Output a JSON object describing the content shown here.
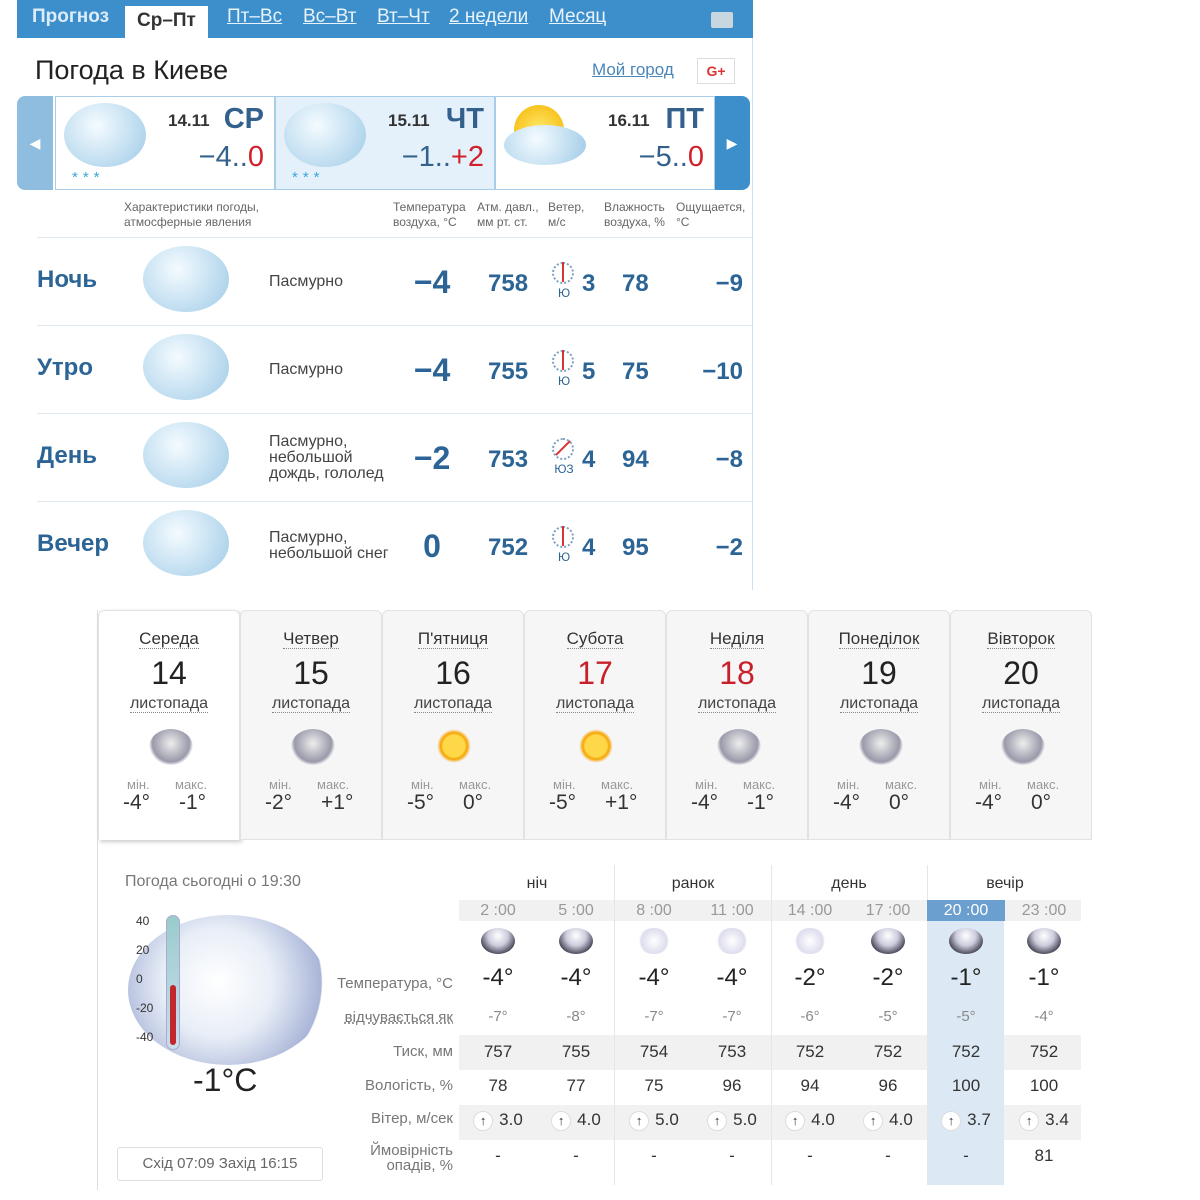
{
  "top": {
    "tabs": [
      "Прогноз",
      "Ср–Пт",
      "Пт–Вс",
      "Вс–Вт",
      "Вт–Чт",
      "2 недели",
      "Месяц"
    ],
    "active_tab": "Ср–Пт",
    "title": "Погода в Киеве",
    "my_city": "Мой город",
    "gplus": "G+",
    "days": [
      {
        "date": "14.11",
        "dow": "СР",
        "min": "−4..",
        "max": "0",
        "icon": "cloud-snow-icon"
      },
      {
        "date": "15.11",
        "dow": "ЧТ",
        "min": "−1..",
        "max": "+2",
        "icon": "cloud-snow-icon"
      },
      {
        "date": "16.11",
        "dow": "ПТ",
        "min": "−5..",
        "max": "0",
        "icon": "sun-cloud-icon"
      }
    ],
    "headers": {
      "desc": "Характеристики погоды, атмосферные явления",
      "temp": "Температура воздуха, °C",
      "pressure": "Атм. давл., мм рт. ст.",
      "wind": "Ветер, м/с",
      "humidity": "Влажность воздуха, %",
      "feels": "Ощущается, °C"
    },
    "rows": [
      {
        "period": "Ночь",
        "desc": "Пасмурно",
        "temp": "−4",
        "pressure": "758",
        "wind_dir": "Ю",
        "wind": "3",
        "humidity": "78",
        "feels": "−9"
      },
      {
        "period": "Утро",
        "desc": "Пасмурно",
        "temp": "−4",
        "pressure": "755",
        "wind_dir": "Ю",
        "wind": "5",
        "humidity": "75",
        "feels": "−10"
      },
      {
        "period": "День",
        "desc": "Пасмурно, небольшой дождь, гололед",
        "temp": "−2",
        "pressure": "753",
        "wind_dir": "ЮЗ",
        "wind": "4",
        "humidity": "94",
        "feels": "−8"
      },
      {
        "period": "Вечер",
        "desc": "Пасмурно, небольшой снег",
        "temp": "0",
        "pressure": "752",
        "wind_dir": "Ю",
        "wind": "4",
        "humidity": "95",
        "feels": "−2"
      }
    ]
  },
  "bottom": {
    "days": [
      {
        "name": "Середа",
        "num": "14",
        "month": "листопада",
        "min": "-4°",
        "max": "-1°",
        "icon": "cloud-snow-icon",
        "weekend": false
      },
      {
        "name": "Четвер",
        "num": "15",
        "month": "листопада",
        "min": "-2°",
        "max": "+1°",
        "icon": "cloud-snow-icon",
        "weekend": false
      },
      {
        "name": "П'ятниця",
        "num": "16",
        "month": "листопада",
        "min": "-5°",
        "max": "0°",
        "icon": "sun-icon",
        "weekend": false
      },
      {
        "name": "Субота",
        "num": "17",
        "month": "листопада",
        "min": "-5°",
        "max": "+1°",
        "icon": "sun-icon",
        "weekend": true
      },
      {
        "name": "Неділя",
        "num": "18",
        "month": "листопада",
        "min": "-4°",
        "max": "-1°",
        "icon": "cloud-rain-icon",
        "weekend": true
      },
      {
        "name": "Понеділок",
        "num": "19",
        "month": "листопада",
        "min": "-4°",
        "max": "0°",
        "icon": "cloud-rain-icon",
        "weekend": false
      },
      {
        "name": "Вівторок",
        "num": "20",
        "month": "листопада",
        "min": "-4°",
        "max": "0°",
        "icon": "cloud-icon",
        "weekend": false
      }
    ],
    "min_label": "мін.",
    "max_label": "макс.",
    "now_title": "Погода сьогодні о 19:30",
    "now_temp": "-1°C",
    "thermo_ticks": [
      "40",
      "20",
      "0",
      "-20",
      "-40"
    ],
    "sun": "Схід 07:09 Захід 16:15",
    "periods": [
      "ніч",
      "ранок",
      "день",
      "вечір"
    ],
    "labels": {
      "temp": "Температура, °C",
      "feels": "відчувається як",
      "pressure": "Тиск, мм",
      "humidity": "Вологість, %",
      "wind": "Вітер, м/сек",
      "precip": "Ймовірність опадів, %"
    },
    "hours": [
      {
        "time": "2 :00",
        "temp": "-4°",
        "feels": "-7°",
        "pressure": "757",
        "humidity": "78",
        "wind": "3.0",
        "precip": "-"
      },
      {
        "time": "5 :00",
        "temp": "-4°",
        "feels": "-8°",
        "pressure": "755",
        "humidity": "77",
        "wind": "4.0",
        "precip": "-"
      },
      {
        "time": "8 :00",
        "temp": "-4°",
        "feels": "-7°",
        "pressure": "754",
        "humidity": "75",
        "wind": "5.0",
        "precip": "-"
      },
      {
        "time": "11 :00",
        "temp": "-4°",
        "feels": "-7°",
        "pressure": "753",
        "humidity": "96",
        "wind": "5.0",
        "precip": "-"
      },
      {
        "time": "14 :00",
        "temp": "-2°",
        "feels": "-6°",
        "pressure": "752",
        "humidity": "94",
        "wind": "4.0",
        "precip": "-"
      },
      {
        "time": "17 :00",
        "temp": "-2°",
        "feels": "-5°",
        "pressure": "752",
        "humidity": "96",
        "wind": "4.0",
        "precip": "-"
      },
      {
        "time": "20 :00",
        "temp": "-1°",
        "feels": "-5°",
        "pressure": "752",
        "humidity": "100",
        "wind": "3.7",
        "precip": "-"
      },
      {
        "time": "23 :00",
        "temp": "-1°",
        "feels": "-4°",
        "pressure": "752",
        "humidity": "100",
        "wind": "3.4",
        "precip": "81"
      }
    ],
    "selected_hour": "20 :00"
  }
}
